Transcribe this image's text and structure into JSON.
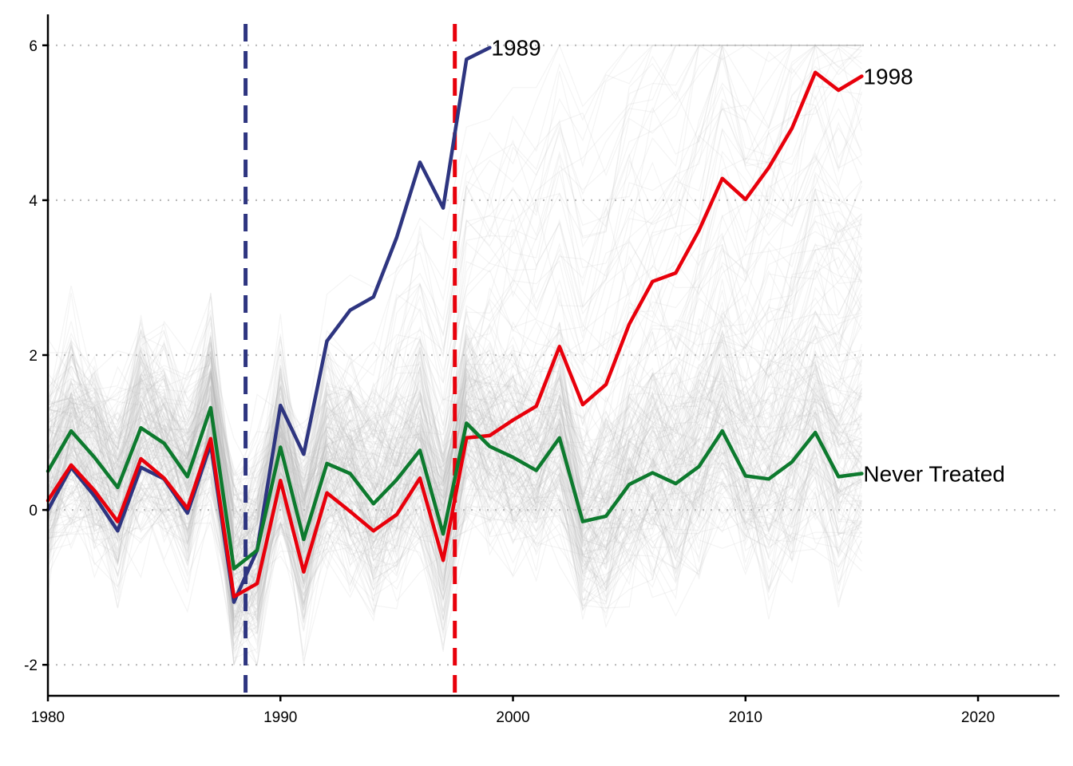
{
  "chart_data": {
    "type": "line",
    "title": "",
    "xlabel": "",
    "ylabel": "",
    "xlim": [
      1980,
      2023.5
    ],
    "ylim": [
      -2.4,
      6.4
    ],
    "x_ticks": [
      1980,
      1990,
      2000,
      2010,
      2020
    ],
    "y_ticks": [
      -2,
      0,
      2,
      4,
      6
    ],
    "grid": {
      "horizontal": true,
      "style": "dotted"
    },
    "background_lines": {
      "count": 200,
      "x_range": [
        1980,
        2015
      ],
      "color": "#bdbdbd",
      "description": "many faint grey unit trajectories"
    },
    "vertical_lines": [
      {
        "x": 1988.5,
        "color": "#2e3580",
        "style": "dashed"
      },
      {
        "x": 1997.5,
        "color": "#e8000b",
        "style": "dashed"
      }
    ],
    "series": [
      {
        "name": "1989",
        "color": "#2e3580",
        "x": [
          1980,
          1981,
          1982,
          1983,
          1984,
          1985,
          1986,
          1987,
          1988,
          1989,
          1990,
          1991,
          1992,
          1993,
          1994,
          1995,
          1996,
          1997,
          1998,
          1999
        ],
        "values": [
          0.0,
          0.55,
          0.18,
          -0.27,
          0.55,
          0.4,
          -0.04,
          0.85,
          -1.19,
          -0.52,
          1.35,
          0.72,
          2.18,
          2.58,
          2.75,
          3.52,
          4.49,
          3.9,
          5.82,
          5.97
        ]
      },
      {
        "name": "1998",
        "color": "#e8000b",
        "x": [
          1980,
          1981,
          1982,
          1983,
          1984,
          1985,
          1986,
          1987,
          1988,
          1989,
          1990,
          1991,
          1992,
          1993,
          1994,
          1995,
          1996,
          1997,
          1998,
          1999,
          2000,
          2001,
          2002,
          2003,
          2004,
          2005,
          2006,
          2007,
          2008,
          2009,
          2010,
          2011,
          2012,
          2013,
          2014,
          2015
        ],
        "values": [
          0.12,
          0.58,
          0.25,
          -0.15,
          0.66,
          0.41,
          0.02,
          0.92,
          -1.12,
          -0.95,
          0.38,
          -0.8,
          0.22,
          -0.02,
          -0.27,
          -0.06,
          0.41,
          -0.65,
          0.93,
          0.96,
          1.16,
          1.34,
          2.11,
          1.36,
          1.62,
          2.4,
          2.95,
          3.06,
          3.61,
          4.28,
          4.01,
          4.42,
          4.93,
          5.65,
          5.42,
          5.6
        ]
      },
      {
        "name": "Never Treated",
        "color": "#0d7a2e",
        "x": [
          1980,
          1981,
          1982,
          1983,
          1984,
          1985,
          1986,
          1987,
          1988,
          1989,
          1990,
          1991,
          1992,
          1993,
          1994,
          1995,
          1996,
          1997,
          1998,
          1999,
          2000,
          2001,
          2002,
          2003,
          2004,
          2005,
          2006,
          2007,
          2008,
          2009,
          2010,
          2011,
          2012,
          2013,
          2014,
          2015
        ],
        "values": [
          0.5,
          1.02,
          0.68,
          0.29,
          1.06,
          0.86,
          0.43,
          1.32,
          -0.76,
          -0.52,
          0.81,
          -0.38,
          0.6,
          0.47,
          0.08,
          0.39,
          0.77,
          -0.31,
          1.12,
          0.82,
          0.68,
          0.51,
          0.93,
          -0.15,
          -0.08,
          0.33,
          0.48,
          0.34,
          0.56,
          1.02,
          0.44,
          0.4,
          0.62,
          1.0,
          0.43,
          0.47
        ]
      }
    ]
  }
}
